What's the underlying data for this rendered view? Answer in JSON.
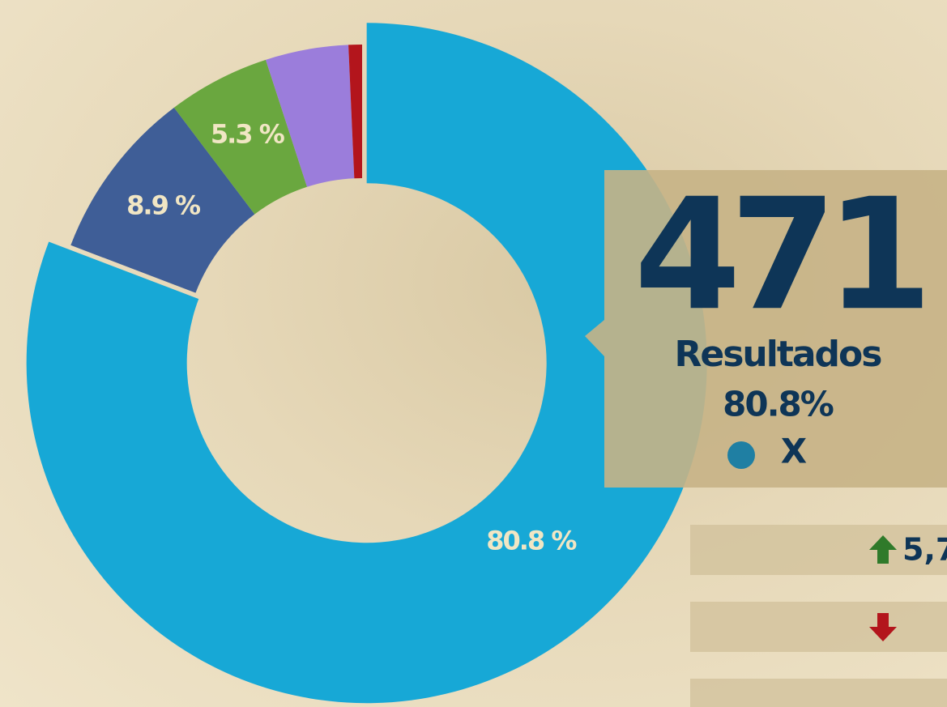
{
  "chart_data": {
    "type": "donut",
    "categories": [
      "X",
      null,
      null,
      null,
      null
    ],
    "values": [
      80.8,
      8.9,
      5.3,
      4.3,
      0.7
    ],
    "value_labels": [
      "80.8 %",
      "8.9 %",
      "5.3 %",
      null,
      null
    ],
    "colors": [
      "#17a8d6",
      "#3f5e97",
      "#6aa73f",
      "#9b7ddb",
      "#b3151c"
    ],
    "exploded": 0,
    "tooltip": {
      "value": "471",
      "label": "Resultados",
      "percent": "80.8%",
      "category": "X"
    },
    "side_boxes": [
      {
        "arrow": "up",
        "text": "5,7"
      },
      {
        "arrow": "down",
        "text": null
      },
      {
        "arrow": null,
        "text": null
      }
    ]
  }
}
